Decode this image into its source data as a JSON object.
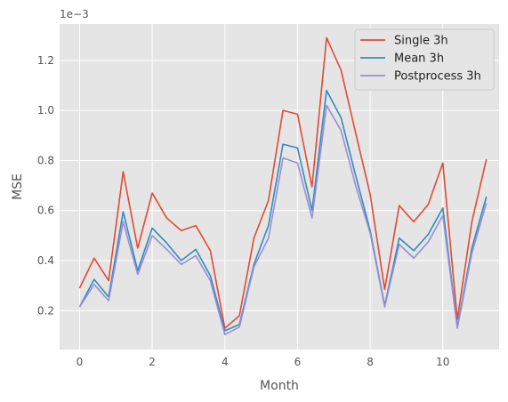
{
  "chart_data": {
    "type": "line",
    "xlabel": "Month",
    "ylabel": "MSE",
    "y_offset_text": "1e−3",
    "y_scale_note": "y values in units of 1e-3",
    "xlim": [
      -0.55,
      11.55
    ],
    "ylim": [
      0.045,
      1.345
    ],
    "xticks": [
      0,
      2,
      4,
      6,
      8,
      10
    ],
    "xtick_labels": [
      "0",
      "2",
      "4",
      "6",
      "8",
      "10"
    ],
    "yticks": [
      0.2,
      0.4,
      0.6,
      0.8,
      1.0,
      1.2
    ],
    "ytick_labels": [
      "0.2",
      "0.4",
      "0.6",
      "0.8",
      "1.0",
      "1.2"
    ],
    "grid": true,
    "legend_position": "upper right",
    "x": [
      0.0,
      0.4,
      0.8,
      1.2,
      1.6,
      2.0,
      2.4,
      2.8,
      3.2,
      3.6,
      4.0,
      4.4,
      4.8,
      5.2,
      5.6,
      6.0,
      6.4,
      6.8,
      7.2,
      7.6,
      8.0,
      8.4,
      8.8,
      9.2,
      9.6,
      10.0,
      10.4,
      10.8,
      11.2
    ],
    "series": [
      {
        "name": "Single 3h",
        "color": "#E24A33",
        "values": [
          0.29,
          0.41,
          0.32,
          0.755,
          0.45,
          0.67,
          0.57,
          0.52,
          0.54,
          0.44,
          0.13,
          0.18,
          0.49,
          0.64,
          1.0,
          0.985,
          0.695,
          1.29,
          1.16,
          0.91,
          0.665,
          0.285,
          0.62,
          0.555,
          0.625,
          0.79,
          0.165,
          0.555,
          0.805
        ]
      },
      {
        "name": "Mean 3h",
        "color": "#348ABD",
        "values": [
          0.215,
          0.325,
          0.255,
          0.595,
          0.36,
          0.53,
          0.47,
          0.4,
          0.445,
          0.34,
          0.12,
          0.145,
          0.385,
          0.54,
          0.865,
          0.85,
          0.6,
          1.08,
          0.97,
          0.74,
          0.52,
          0.22,
          0.49,
          0.44,
          0.505,
          0.61,
          0.135,
          0.45,
          0.655
        ]
      },
      {
        "name": "Postprocess 3h",
        "color": "#988ED5",
        "values": [
          0.215,
          0.305,
          0.24,
          0.555,
          0.345,
          0.5,
          0.445,
          0.385,
          0.42,
          0.32,
          0.105,
          0.135,
          0.375,
          0.49,
          0.81,
          0.79,
          0.57,
          1.02,
          0.92,
          0.7,
          0.51,
          0.215,
          0.465,
          0.41,
          0.475,
          0.58,
          0.13,
          0.43,
          0.63
        ]
      }
    ]
  }
}
